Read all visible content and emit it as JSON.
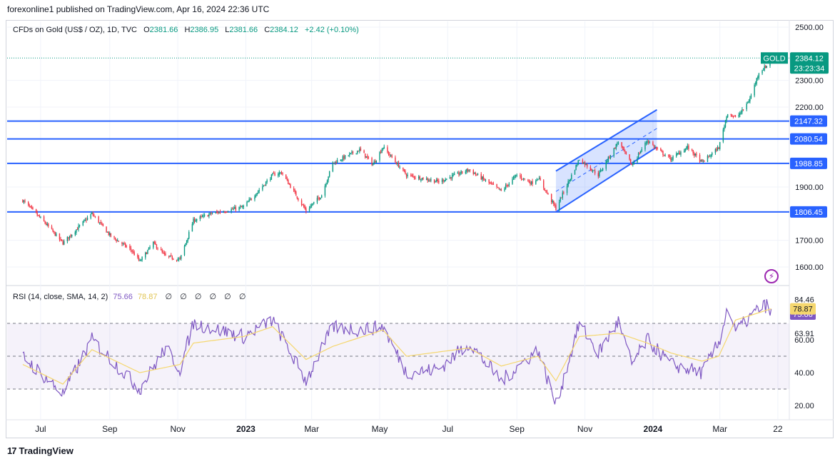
{
  "header": {
    "caption": "forexonline1 published on TradingView.com, Apr 16, 2024 22:36 UTC"
  },
  "legend": {
    "symbol": "CFDs on Gold (US$ / OZ), 1D, TVC",
    "open_label": "O",
    "open": "2381.66",
    "high_label": "H",
    "high": "2386.95",
    "low_label": "L",
    "low": "2381.66",
    "close_label": "C",
    "close": "2384.12",
    "change": "+2.42 (+0.10%)"
  },
  "rsi_legend": {
    "label": "RSI (14, close, SMA, 14, 2)",
    "rsi_value": "75.66",
    "sma_value": "78.87",
    "na": [
      "∅",
      "∅",
      "∅",
      "∅",
      "∅",
      "∅"
    ]
  },
  "price_badge": {
    "symbol": "GOLD",
    "price": "2384.12",
    "countdown": "23:23:34"
  },
  "footer": {
    "brand": "TradingView",
    "brand_mark": "17"
  },
  "colors": {
    "bull": "#089981",
    "bear": "#f23645",
    "level_line": "#2962ff",
    "channel_fill": "#2962ff",
    "rsi_line": "#7e57c2",
    "rsi_sma": "#f5d76e",
    "rsi_band": "#7e57c2"
  },
  "chart_data": [
    {
      "type": "candlestick",
      "x_ticks": [
        "Jul",
        "Sep",
        "Nov",
        "2023",
        "Mar",
        "May",
        "Jul",
        "Sep",
        "Nov",
        "2024",
        "Mar",
        "22"
      ],
      "y_ticks": [
        "1600.00",
        "1700.00",
        "1900.00",
        "2200.00",
        "2300.00",
        "2500.00"
      ],
      "ylim": [
        1565,
        2510
      ],
      "horizontal_levels": [
        {
          "label": "2147.32",
          "value": 2147.32
        },
        {
          "label": "2080.54",
          "value": 2080.54
        },
        {
          "label": "1988.85",
          "value": 1988.85
        },
        {
          "label": "1806.45",
          "value": 1806.45
        }
      ],
      "last_price": 2384.12,
      "channel": {
        "start": {
          "x": "2023-10-06",
          "low": 1806.45,
          "high": 1960
        },
        "end": {
          "x": "2024-01-02",
          "low": 2050,
          "high": 2190
        }
      },
      "keypoints": [
        {
          "x": "2022-06-15",
          "close": 1850
        },
        {
          "x": "2022-07-05",
          "close": 1765
        },
        {
          "x": "2022-07-21",
          "close": 1690
        },
        {
          "x": "2022-08-16",
          "close": 1800
        },
        {
          "x": "2022-09-02",
          "close": 1715
        },
        {
          "x": "2022-09-20",
          "close": 1665
        },
        {
          "x": "2022-09-28",
          "close": 1620
        },
        {
          "x": "2022-10-10",
          "close": 1690
        },
        {
          "x": "2022-10-21",
          "close": 1640
        },
        {
          "x": "2022-11-03",
          "close": 1628
        },
        {
          "x": "2022-11-15",
          "close": 1775
        },
        {
          "x": "2022-12-01",
          "close": 1800
        },
        {
          "x": "2022-12-30",
          "close": 1825
        },
        {
          "x": "2023-01-25",
          "close": 1945
        },
        {
          "x": "2023-02-02",
          "close": 1955
        },
        {
          "x": "2023-02-24",
          "close": 1811
        },
        {
          "x": "2023-03-10",
          "close": 1870
        },
        {
          "x": "2023-03-20",
          "close": 1990
        },
        {
          "x": "2023-04-13",
          "close": 2040
        },
        {
          "x": "2023-04-25",
          "close": 1985
        },
        {
          "x": "2023-05-04",
          "close": 2050
        },
        {
          "x": "2023-05-25",
          "close": 1945
        },
        {
          "x": "2023-06-23",
          "close": 1920
        },
        {
          "x": "2023-07-20",
          "close": 1965
        },
        {
          "x": "2023-08-18",
          "close": 1885
        },
        {
          "x": "2023-09-01",
          "close": 1945
        },
        {
          "x": "2023-09-14",
          "close": 1915
        },
        {
          "x": "2023-09-20",
          "close": 1935
        },
        {
          "x": "2023-10-06",
          "close": 1820
        },
        {
          "x": "2023-10-27",
          "close": 2005
        },
        {
          "x": "2023-11-13",
          "close": 1945
        },
        {
          "x": "2023-12-01",
          "close": 2070
        },
        {
          "x": "2023-12-13",
          "close": 1982
        },
        {
          "x": "2023-12-27",
          "close": 2075
        },
        {
          "x": "2024-01-05",
          "close": 2040
        },
        {
          "x": "2024-01-17",
          "close": 2005
        },
        {
          "x": "2024-02-01",
          "close": 2050
        },
        {
          "x": "2024-02-14",
          "close": 1992
        },
        {
          "x": "2024-02-29",
          "close": 2048
        },
        {
          "x": "2024-03-08",
          "close": 2180
        },
        {
          "x": "2024-03-15",
          "close": 2160
        },
        {
          "x": "2024-03-21",
          "close": 2185
        },
        {
          "x": "2024-03-28",
          "close": 2232
        },
        {
          "x": "2024-04-05",
          "close": 2330
        },
        {
          "x": "2024-04-12",
          "close": 2355
        },
        {
          "x": "2024-04-16",
          "close": 2384.12
        }
      ]
    },
    {
      "type": "line",
      "y_ticks": [
        "20.00",
        "40.00",
        "60.00",
        "63.91",
        "84.46"
      ],
      "ylim": [
        15,
        88
      ],
      "bands": [
        70,
        50,
        30
      ],
      "series": [
        {
          "name": "RSI",
          "last": 75.66,
          "keypoints": [
            {
              "x": "2022-06-15",
              "y": 50
            },
            {
              "x": "2022-07-21",
              "y": 27
            },
            {
              "x": "2022-08-16",
              "y": 60
            },
            {
              "x": "2022-09-28",
              "y": 30
            },
            {
              "x": "2022-10-21",
              "y": 55
            },
            {
              "x": "2022-11-03",
              "y": 42
            },
            {
              "x": "2022-11-15",
              "y": 70
            },
            {
              "x": "2022-12-30",
              "y": 62
            },
            {
              "x": "2023-01-25",
              "y": 72
            },
            {
              "x": "2023-02-24",
              "y": 35
            },
            {
              "x": "2023-03-20",
              "y": 68
            },
            {
              "x": "2023-04-13",
              "y": 66
            },
            {
              "x": "2023-05-04",
              "y": 68
            },
            {
              "x": "2023-05-25",
              "y": 40
            },
            {
              "x": "2023-06-23",
              "y": 42
            },
            {
              "x": "2023-07-20",
              "y": 58
            },
            {
              "x": "2023-08-18",
              "y": 35
            },
            {
              "x": "2023-09-20",
              "y": 54
            },
            {
              "x": "2023-10-06",
              "y": 20
            },
            {
              "x": "2023-10-27",
              "y": 70
            },
            {
              "x": "2023-11-13",
              "y": 52
            },
            {
              "x": "2023-12-01",
              "y": 71
            },
            {
              "x": "2023-12-13",
              "y": 45
            },
            {
              "x": "2023-12-27",
              "y": 60
            },
            {
              "x": "2024-01-17",
              "y": 45
            },
            {
              "x": "2024-02-14",
              "y": 40
            },
            {
              "x": "2024-02-29",
              "y": 58
            },
            {
              "x": "2024-03-08",
              "y": 80
            },
            {
              "x": "2024-03-15",
              "y": 65
            },
            {
              "x": "2024-04-05",
              "y": 79
            },
            {
              "x": "2024-04-12",
              "y": 81
            },
            {
              "x": "2024-04-16",
              "y": 75.66
            }
          ]
        },
        {
          "name": "SMA",
          "last": 78.87,
          "keypoints": [
            {
              "x": "2022-06-15",
              "y": 45
            },
            {
              "x": "2022-07-21",
              "y": 33
            },
            {
              "x": "2022-08-16",
              "y": 54
            },
            {
              "x": "2022-09-28",
              "y": 40
            },
            {
              "x": "2022-11-03",
              "y": 45
            },
            {
              "x": "2022-11-15",
              "y": 58
            },
            {
              "x": "2022-12-30",
              "y": 62
            },
            {
              "x": "2023-01-25",
              "y": 68
            },
            {
              "x": "2023-02-24",
              "y": 48
            },
            {
              "x": "2023-03-20",
              "y": 56
            },
            {
              "x": "2023-05-04",
              "y": 66
            },
            {
              "x": "2023-05-25",
              "y": 50
            },
            {
              "x": "2023-07-20",
              "y": 55
            },
            {
              "x": "2023-08-18",
              "y": 44
            },
            {
              "x": "2023-09-20",
              "y": 50
            },
            {
              "x": "2023-10-06",
              "y": 35
            },
            {
              "x": "2023-10-27",
              "y": 62
            },
            {
              "x": "2023-12-01",
              "y": 64
            },
            {
              "x": "2023-12-27",
              "y": 58
            },
            {
              "x": "2024-01-17",
              "y": 52
            },
            {
              "x": "2024-02-14",
              "y": 47
            },
            {
              "x": "2024-02-29",
              "y": 50
            },
            {
              "x": "2024-03-15",
              "y": 72
            },
            {
              "x": "2024-04-16",
              "y": 78.87
            }
          ]
        }
      ]
    }
  ]
}
